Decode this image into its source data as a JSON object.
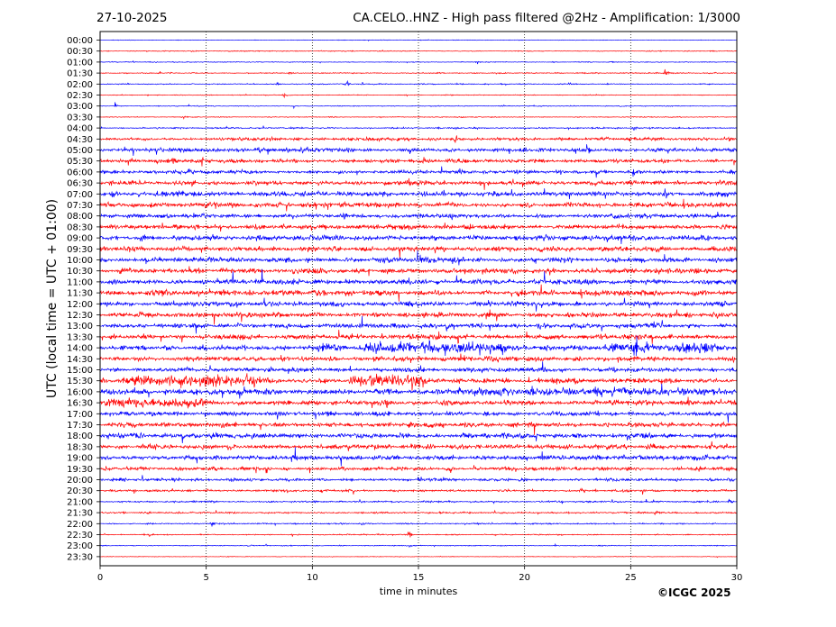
{
  "header": {
    "date": "27-10-2025",
    "title": "CA.CELO..HNZ - High pass filtered @2Hz - Amplification: 1/3000"
  },
  "footer": {
    "copyright": "©ICGC 2025"
  },
  "chart_data": {
    "type": "line",
    "title": "CA.CELO..HNZ - High pass filtered @2Hz - Amplification: 1/3000",
    "xlabel": "time in minutes",
    "ylabel": "UTC (local time = UTC + 01:00)",
    "xlim": [
      0,
      30
    ],
    "xticks": [
      0,
      5,
      10,
      15,
      20,
      25,
      30
    ],
    "vertical_gridlines": [
      5,
      10,
      15,
      20,
      25
    ],
    "rows": [
      "00:00",
      "00:30",
      "01:00",
      "01:30",
      "02:00",
      "02:30",
      "03:00",
      "03:30",
      "04:00",
      "04:30",
      "05:00",
      "05:30",
      "06:00",
      "06:30",
      "07:00",
      "07:30",
      "08:00",
      "08:30",
      "09:00",
      "09:30",
      "10:00",
      "10:30",
      "11:00",
      "11:30",
      "12:00",
      "12:30",
      "13:00",
      "13:30",
      "14:00",
      "14:30",
      "15:00",
      "15:30",
      "16:00",
      "16:30",
      "17:00",
      "17:30",
      "18:00",
      "18:30",
      "19:00",
      "19:30",
      "20:00",
      "20:30",
      "21:00",
      "21:30",
      "22:00",
      "22:30",
      "23:00",
      "23:30"
    ],
    "colors": {
      "even_rows": "#0000ff",
      "odd_rows": "#ff0000"
    },
    "series_color_order": [
      "blue",
      "red"
    ],
    "noise_level": [
      0.2,
      0.3,
      0.3,
      0.4,
      0.4,
      0.3,
      0.3,
      0.3,
      0.5,
      1.2,
      1.4,
      1.3,
      1.3,
      1.6,
      1.8,
      1.7,
      1.6,
      1.7,
      1.8,
      1.8,
      1.7,
      1.9,
      1.7,
      1.8,
      1.7,
      1.7,
      1.7,
      1.7,
      1.7,
      1.7,
      1.6,
      1.7,
      1.9,
      1.8,
      1.6,
      1.7,
      1.8,
      1.8,
      1.7,
      1.3,
      1.1,
      0.8,
      0.6,
      0.6,
      0.5,
      0.4,
      0.3,
      0.2
    ],
    "bursts": [
      {
        "row": "14:00",
        "from": 10.0,
        "to": 11.6,
        "amp": 4
      },
      {
        "row": "14:00",
        "from": 12.2,
        "to": 19.4,
        "amp": 5
      },
      {
        "row": "14:00",
        "from": 23.7,
        "to": 26.2,
        "amp": 5
      },
      {
        "row": "14:00",
        "from": 26.6,
        "to": 29.3,
        "amp": 5
      },
      {
        "row": "15:30",
        "from": 1.0,
        "to": 7.8,
        "amp": 5
      },
      {
        "row": "15:30",
        "from": 11.7,
        "to": 15.6,
        "amp": 6
      },
      {
        "row": "16:00",
        "from": 15.5,
        "to": 29.9,
        "amp": 3.5
      },
      {
        "row": "16:30",
        "from": 0.0,
        "to": 5.2,
        "amp": 4
      }
    ],
    "events": [
      {
        "row": "02:00",
        "t": 11.6,
        "amp": 3
      },
      {
        "row": "02:00",
        "t": 8.3,
        "amp": 2
      },
      {
        "row": "02:30",
        "t": 8.6,
        "amp": 4
      },
      {
        "row": "03:00",
        "t": 0.7,
        "amp": 3
      },
      {
        "row": "03:30",
        "t": 3.9,
        "amp": 3
      },
      {
        "row": "01:30",
        "t": 26.6,
        "amp": 4
      },
      {
        "row": "01:30",
        "t": 8.9,
        "amp": 2
      },
      {
        "row": "04:00",
        "t": 9.5,
        "amp": 2
      },
      {
        "row": "04:00",
        "t": 25.1,
        "amp": 3
      },
      {
        "row": "04:30",
        "t": 16.7,
        "amp": 9
      },
      {
        "row": "04:30",
        "t": 29.6,
        "amp": 4
      },
      {
        "row": "05:00",
        "t": 9.7,
        "amp": 6
      },
      {
        "row": "05:00",
        "t": 22.9,
        "amp": 7
      },
      {
        "row": "05:30",
        "t": 3.4,
        "amp": 7
      },
      {
        "row": "05:30",
        "t": 4.8,
        "amp": 5
      },
      {
        "row": "06:00",
        "t": 4.2,
        "amp": 8
      },
      {
        "row": "06:00",
        "t": 25.1,
        "amp": 5
      },
      {
        "row": "06:30",
        "t": 4.3,
        "amp": 7
      },
      {
        "row": "07:00",
        "t": 26.6,
        "amp": 8
      },
      {
        "row": "07:30",
        "t": 2.4,
        "amp": 6
      },
      {
        "row": "08:00",
        "t": 11.5,
        "amp": 7
      },
      {
        "row": "09:30",
        "t": 11.0,
        "amp": 6
      },
      {
        "row": "10:00",
        "t": 2.1,
        "amp": 5
      },
      {
        "row": "11:00",
        "t": 14.5,
        "amp": 6
      },
      {
        "row": "11:00",
        "t": 19.2,
        "amp": 5
      },
      {
        "row": "12:00",
        "t": 6.4,
        "amp": 6
      },
      {
        "row": "12:00",
        "t": 18.3,
        "amp": 5
      },
      {
        "row": "12:30",
        "t": 18.6,
        "amp": 7
      },
      {
        "row": "13:30",
        "t": 17.2,
        "amp": 5
      },
      {
        "row": "14:30",
        "t": 14.6,
        "amp": 5
      },
      {
        "row": "15:00",
        "t": 25.2,
        "amp": 5
      },
      {
        "row": "16:00",
        "t": 18.0,
        "amp": 8
      },
      {
        "row": "16:30",
        "t": 13.5,
        "amp": 9
      },
      {
        "row": "17:00",
        "t": 23.4,
        "amp": 5
      },
      {
        "row": "18:30",
        "t": 15.0,
        "amp": 5
      },
      {
        "row": "19:00",
        "t": 20.8,
        "amp": 5
      },
      {
        "row": "19:00",
        "t": 15.9,
        "amp": 4
      },
      {
        "row": "19:30",
        "t": 28.2,
        "amp": 4
      },
      {
        "row": "19:30",
        "t": 0.2,
        "amp": 4
      },
      {
        "row": "20:30",
        "t": 22.6,
        "amp": 4
      },
      {
        "row": "21:00",
        "t": 29.6,
        "amp": 4
      },
      {
        "row": "21:30",
        "t": 26.1,
        "amp": 4
      },
      {
        "row": "22:00",
        "t": 5.2,
        "amp": 4
      },
      {
        "row": "22:00",
        "t": 12.3,
        "amp": 3
      },
      {
        "row": "22:30",
        "t": 14.5,
        "amp": 5
      },
      {
        "row": "22:30",
        "t": 2.3,
        "amp": 3
      },
      {
        "row": "23:00",
        "t": 7.0,
        "amp": 2
      },
      {
        "row": "23:00",
        "t": 7.8,
        "amp": 2
      }
    ]
  }
}
